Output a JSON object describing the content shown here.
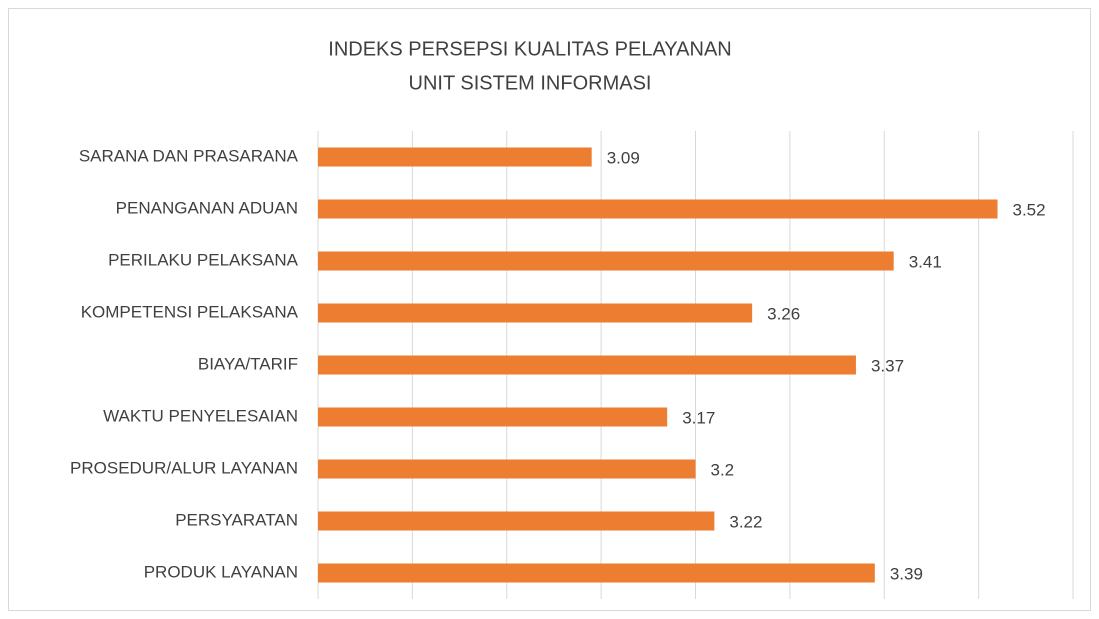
{
  "chart_data": {
    "type": "bar",
    "orientation": "horizontal",
    "title": [
      "INDEKS PERSEPSI KUALITAS PELAYANAN",
      "UNIT SISTEM INFORMASI"
    ],
    "categories": [
      "SARANA DAN PRASARANA",
      "PENANGANAN ADUAN",
      "PERILAKU PELAKSANA",
      "KOMPETENSI PELAKSANA",
      "BIAYA/TARIF",
      "WAKTU PENYELESAIAN",
      "PROSEDUR/ALUR LAYANAN",
      "PERSYARATAN",
      "PRODUK LAYANAN"
    ],
    "values": [
      3.09,
      3.52,
      3.41,
      3.26,
      3.37,
      3.17,
      3.2,
      3.22,
      3.39
    ],
    "color": "#ed7d31",
    "xlim": [
      2.8,
      3.6
    ],
    "xticks": [
      2.8,
      2.9,
      3.0,
      3.1,
      3.2,
      3.3,
      3.4,
      3.5,
      3.6
    ],
    "grid": true
  }
}
